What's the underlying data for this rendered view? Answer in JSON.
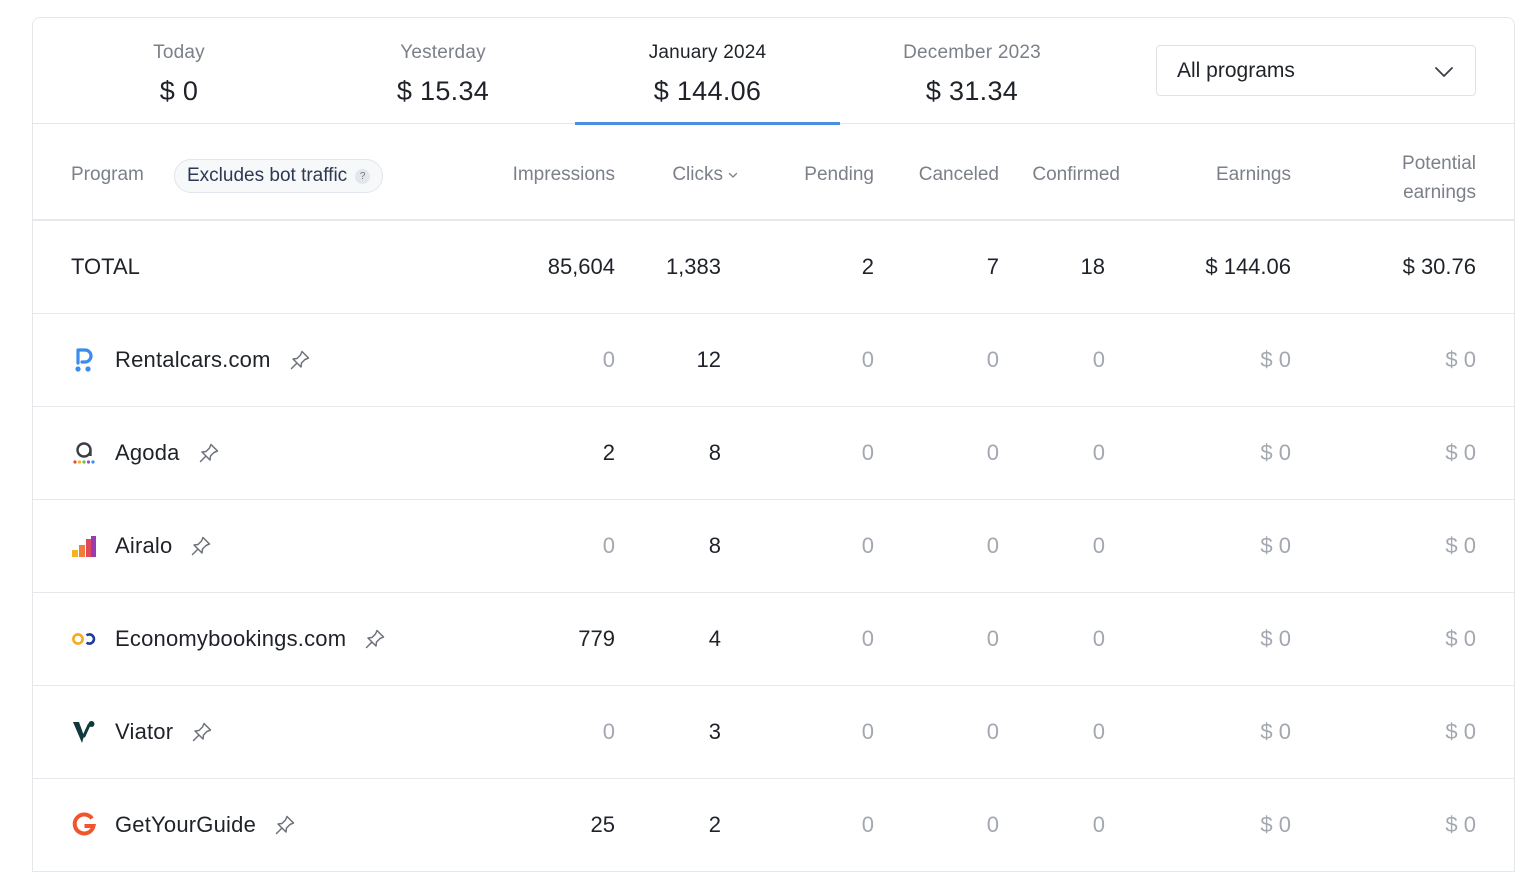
{
  "tabs": [
    {
      "label": "Today",
      "value": "$ 0"
    },
    {
      "label": "Yesterday",
      "value": "$ 15.34"
    },
    {
      "label": "January 2024",
      "value": "$ 144.06"
    },
    {
      "label": "December 2023",
      "value": "$ 31.34"
    }
  ],
  "active_tab": "January 2024",
  "program_filter": {
    "selected": "All programs"
  },
  "table": {
    "headers": {
      "program": "Program",
      "bot_badge": "Excludes bot traffic",
      "bot_help": "?",
      "impressions": "Impressions",
      "clicks": "Clicks",
      "pending": "Pending",
      "canceled": "Canceled",
      "confirmed": "Confirmed",
      "earnings": "Earnings",
      "potential_line1": "Potential",
      "potential_line2": "earnings"
    },
    "total": {
      "label": "TOTAL",
      "impressions": "85,604",
      "clicks": "1,383",
      "pending": "2",
      "canceled": "7",
      "confirmed": "18",
      "earnings": "$ 144.06",
      "potential": "$ 30.76"
    },
    "rows": [
      {
        "name": "Rentalcars.com",
        "logo": "rentalcars-logo",
        "impressions": "0",
        "clicks": "12",
        "pending": "0",
        "canceled": "0",
        "confirmed": "0",
        "earnings": "$ 0",
        "potential": "$ 0"
      },
      {
        "name": "Agoda",
        "logo": "agoda-logo",
        "impressions": "2",
        "clicks": "8",
        "pending": "0",
        "canceled": "0",
        "confirmed": "0",
        "earnings": "$ 0",
        "potential": "$ 0"
      },
      {
        "name": "Airalo",
        "logo": "airalo-logo",
        "impressions": "0",
        "clicks": "8",
        "pending": "0",
        "canceled": "0",
        "confirmed": "0",
        "earnings": "$ 0",
        "potential": "$ 0"
      },
      {
        "name": "Economybookings.com",
        "logo": "economybookings-logo",
        "impressions": "779",
        "clicks": "4",
        "pending": "0",
        "canceled": "0",
        "confirmed": "0",
        "earnings": "$ 0",
        "potential": "$ 0"
      },
      {
        "name": "Viator",
        "logo": "viator-logo",
        "impressions": "0",
        "clicks": "3",
        "pending": "0",
        "canceled": "0",
        "confirmed": "0",
        "earnings": "$ 0",
        "potential": "$ 0"
      },
      {
        "name": "GetYourGuide",
        "logo": "getyourguide-logo",
        "impressions": "25",
        "clicks": "2",
        "pending": "0",
        "canceled": "0",
        "confirmed": "0",
        "earnings": "$ 0",
        "potential": "$ 0"
      }
    ]
  },
  "colors": {
    "accent": "#4a8fe2",
    "muted": "#a3a8b0",
    "text": "#1f2329"
  },
  "icons": {
    "select": "chevron-down-icon",
    "sort": "chevron-down-icon",
    "pin": "pin-icon",
    "help": "help-icon"
  }
}
